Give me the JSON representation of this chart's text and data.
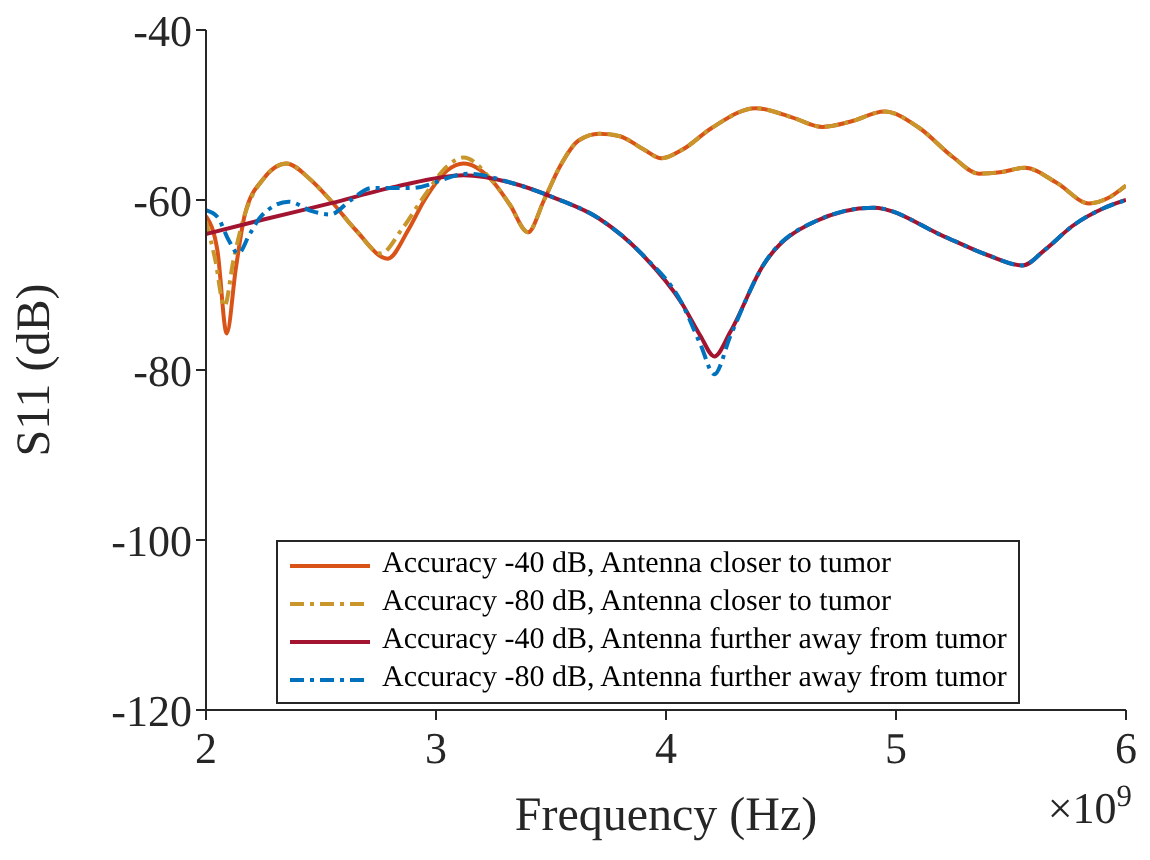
{
  "chart_data": {
    "type": "line",
    "xlabel": "Frequency (Hz)",
    "ylabel": "S11 (dB)",
    "annotations": [
      "×10$^{9}$"
    ],
    "xlim": [
      2,
      6
    ],
    "xticks": [
      2,
      3,
      4,
      5,
      6
    ],
    "ylim": [
      -120,
      -40
    ],
    "yticks": [
      -120,
      -100,
      -80,
      -60,
      -40
    ],
    "legend": "bottom",
    "marker": "none",
    "series": [
      {
        "name": "Accuracy -40 dB, Antenna closer to tumor",
        "color": "#d95319",
        "line_style": "solid",
        "x": [
          2.0,
          2.05,
          2.09,
          2.13,
          2.17,
          2.25,
          2.35,
          2.45,
          2.54,
          2.65,
          2.79,
          2.88,
          2.95,
          3.05,
          3.12,
          3.24,
          3.32,
          3.4,
          3.47,
          3.54,
          3.62,
          3.71,
          3.8,
          3.9,
          3.98,
          4.07,
          4.2,
          4.39,
          4.55,
          4.68,
          4.8,
          4.95,
          5.1,
          5.25,
          5.36,
          5.46,
          5.56,
          5.7,
          5.84,
          5.92,
          6.0
        ],
        "values": [
          -61.9,
          -66,
          -75.7,
          -68,
          -61.6,
          -57.5,
          -55.7,
          -57.5,
          -60,
          -63.5,
          -66.9,
          -63.5,
          -60,
          -56.5,
          -55.7,
          -57.6,
          -60.5,
          -63.8,
          -60,
          -56,
          -53,
          -52.2,
          -52.5,
          -54,
          -55.1,
          -54.1,
          -51.5,
          -49.2,
          -50.3,
          -51.4,
          -50.8,
          -49.6,
          -51.5,
          -55,
          -56.9,
          -56.7,
          -56.2,
          -58,
          -60.4,
          -59.8,
          -58.3
        ]
      },
      {
        "name": "Accuracy -80 dB, Antenna closer to tumor",
        "color": "#c8962a",
        "line_style": "dashed",
        "x": [
          2.0,
          2.04,
          2.08,
          2.12,
          2.17,
          2.25,
          2.35,
          2.45,
          2.54,
          2.65,
          2.76,
          2.85,
          2.95,
          3.05,
          3.12,
          3.24,
          3.32,
          3.4,
          3.47,
          3.54,
          3.62,
          3.71,
          3.8,
          3.9,
          3.98,
          4.07,
          4.2,
          4.39,
          4.55,
          4.68,
          4.8,
          4.95,
          5.1,
          5.25,
          5.36,
          5.46,
          5.56,
          5.7,
          5.84,
          5.92,
          6.0
        ],
        "values": [
          -62.5,
          -67,
          -72.5,
          -67,
          -61.6,
          -57.5,
          -55.7,
          -57.5,
          -60,
          -63.5,
          -66.3,
          -63.5,
          -59.5,
          -56,
          -55,
          -57.6,
          -60.5,
          -63.8,
          -60,
          -56,
          -53,
          -52.2,
          -52.5,
          -54,
          -55.1,
          -54.1,
          -51.5,
          -49.2,
          -50.3,
          -51.4,
          -50.8,
          -49.6,
          -51.5,
          -55,
          -56.9,
          -56.7,
          -56.2,
          -58,
          -60.4,
          -59.8,
          -58.3
        ]
      },
      {
        "name": "Accuracy -40 dB, Antenna further away from tumor",
        "color": "#a2142f",
        "line_style": "solid",
        "x": [
          2.0,
          2.25,
          2.54,
          2.83,
          3.12,
          3.33,
          3.52,
          3.71,
          3.9,
          4.07,
          4.15,
          4.21,
          4.28,
          4.42,
          4.65,
          4.9,
          5.21,
          5.4,
          5.55,
          5.65,
          5.77,
          5.9,
          6.0
        ],
        "values": [
          -64,
          -62.3,
          -60.4,
          -58.4,
          -57.1,
          -58,
          -59.8,
          -62.2,
          -66.5,
          -72.2,
          -76,
          -78.4,
          -75.5,
          -67.8,
          -62.5,
          -60.9,
          -64.3,
          -66.5,
          -67.7,
          -65.8,
          -63,
          -61,
          -60
        ]
      },
      {
        "name": "Accuracy -80 dB, Antenna further away from tumor",
        "color": "#0072bd",
        "line_style": "dashed",
        "x": [
          2.0,
          2.05,
          2.1,
          2.14,
          2.19,
          2.24,
          2.36,
          2.46,
          2.54,
          2.63,
          2.72,
          2.89,
          3.14,
          3.33,
          3.52,
          3.71,
          3.9,
          4.07,
          4.15,
          4.21,
          4.28,
          4.42,
          4.65,
          4.9,
          5.21,
          5.4,
          5.55,
          5.65,
          5.77,
          5.9,
          6.0
        ],
        "values": [
          -61.2,
          -62,
          -64.8,
          -66.3,
          -64,
          -61.9,
          -60.2,
          -61.3,
          -61.7,
          -60,
          -58.6,
          -58.6,
          -56.9,
          -58,
          -59.8,
          -62.2,
          -66.5,
          -72.2,
          -77,
          -80.5,
          -76,
          -67.8,
          -62.5,
          -60.9,
          -64.3,
          -66.5,
          -67.7,
          -65.8,
          -63,
          -61,
          -60
        ]
      }
    ]
  }
}
